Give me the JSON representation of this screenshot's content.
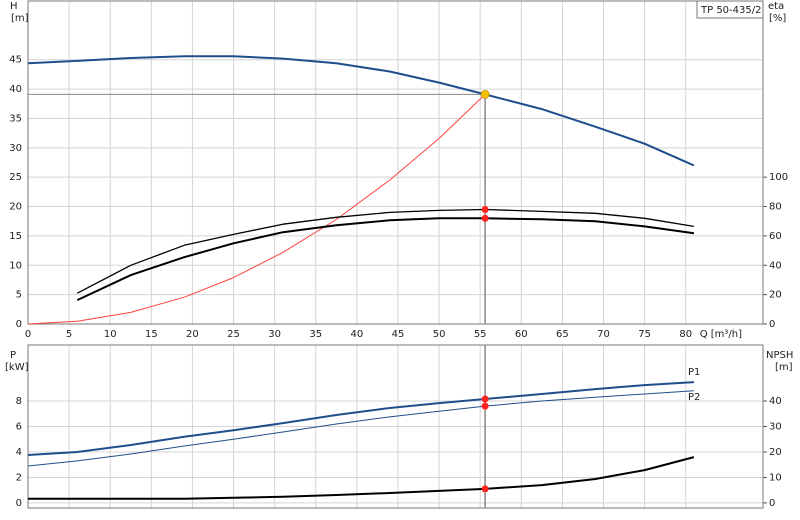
{
  "chart_data": [
    {
      "type": "line",
      "title": "TP 50-435/2",
      "xlabel": "Q [m³/h]",
      "ylabel": "H",
      "yunit": "[m]",
      "y2label": "eta",
      "y2unit": "[%]",
      "x": [
        0,
        6,
        12.5,
        19,
        25,
        31,
        37.5,
        44,
        50,
        55.6,
        62.5,
        69,
        75,
        81
      ],
      "xlim": [
        0,
        89.4
      ],
      "xticks": [
        0,
        5,
        10,
        15,
        20,
        25,
        30,
        35,
        40,
        45,
        50,
        55,
        60,
        65,
        70,
        75,
        80
      ],
      "ylim": [
        0,
        55
      ],
      "yticks": [
        0,
        5,
        10,
        15,
        20,
        25,
        30,
        35,
        40,
        45
      ],
      "y2lim": [
        0,
        220
      ],
      "y2ticks": [
        0,
        20,
        40,
        60,
        80,
        100
      ],
      "grid": true,
      "dot_color": "#ff2020",
      "duty_point": {
        "x": 55.6,
        "y": 39.1,
        "color": "#f5c000"
      },
      "series": [
        {
          "color": "#1f4e8c",
          "values": [
            44.4,
            44.8,
            45.3,
            45.6,
            45.6,
            45.2,
            44.4,
            43.0,
            41.1,
            39.1,
            36.6,
            33.6,
            30.7,
            27.0
          ]
        },
        {
          "color": "#ff4040",
          "values": [
            0,
            0.46,
            1.98,
            4.57,
            7.9,
            12.2,
            17.8,
            24.5,
            31.6,
            39.1,
            null,
            null,
            null,
            null
          ]
        },
        {
          "color": "#000000",
          "axis": "y2",
          "dot": true,
          "values": [
            null,
            21,
            40,
            53.6,
            61,
            68,
            72.7,
            76,
            77.4,
            78,
            76.7,
            75.4,
            72,
            66.5
          ]
        },
        {
          "color": "#000000",
          "axis": "y2",
          "dot": true,
          "values": [
            null,
            16.3,
            33.3,
            45.5,
            55,
            62.5,
            67.2,
            70.6,
            72,
            72,
            71.3,
            70,
            66.5,
            61.8
          ]
        }
      ]
    },
    {
      "type": "line",
      "ylabel": "P",
      "yunit": "[kW]",
      "y2label": "NPSH",
      "y2unit": "[m]",
      "x": [
        0,
        6,
        12.5,
        19,
        25,
        31,
        37.5,
        44,
        50,
        55.6,
        62.5,
        69,
        75,
        81
      ],
      "xlim": [
        0,
        89.4
      ],
      "xticks": [
        0,
        5,
        10,
        15,
        20,
        25,
        30,
        35,
        40,
        45,
        50,
        55,
        60,
        65,
        70,
        75,
        80
      ],
      "xtick_labels": false,
      "ylim": [
        -0.4,
        12.4
      ],
      "yticks": [
        0,
        2,
        4,
        6,
        8
      ],
      "y2lim": [
        -2,
        62
      ],
      "y2ticks": [
        0,
        10,
        20,
        30,
        40
      ],
      "grid": true,
      "dot_color": "#ff2020",
      "duty_point": {
        "x": 55.6
      },
      "series": [
        {
          "name": "P1",
          "color": "#1f4e8c",
          "dot": true,
          "values": [
            3.76,
            4.0,
            4.55,
            5.2,
            5.7,
            6.27,
            6.9,
            7.45,
            7.84,
            8.16,
            8.55,
            8.94,
            9.25,
            9.49
          ]
        },
        {
          "name": "P2",
          "color": "#1f4e8c",
          "dot": true,
          "values": [
            2.9,
            3.3,
            3.84,
            4.47,
            5.0,
            5.57,
            6.2,
            6.75,
            7.2,
            7.6,
            8.0,
            8.3,
            8.55,
            8.8
          ]
        },
        {
          "color": "#000000",
          "axis": "y2",
          "dot": true,
          "values": [
            1.6,
            1.6,
            1.6,
            1.6,
            2,
            2.4,
            3.1,
            3.9,
            4.7,
            5.5,
            7,
            9.4,
            12.9,
            18
          ]
        }
      ]
    }
  ]
}
